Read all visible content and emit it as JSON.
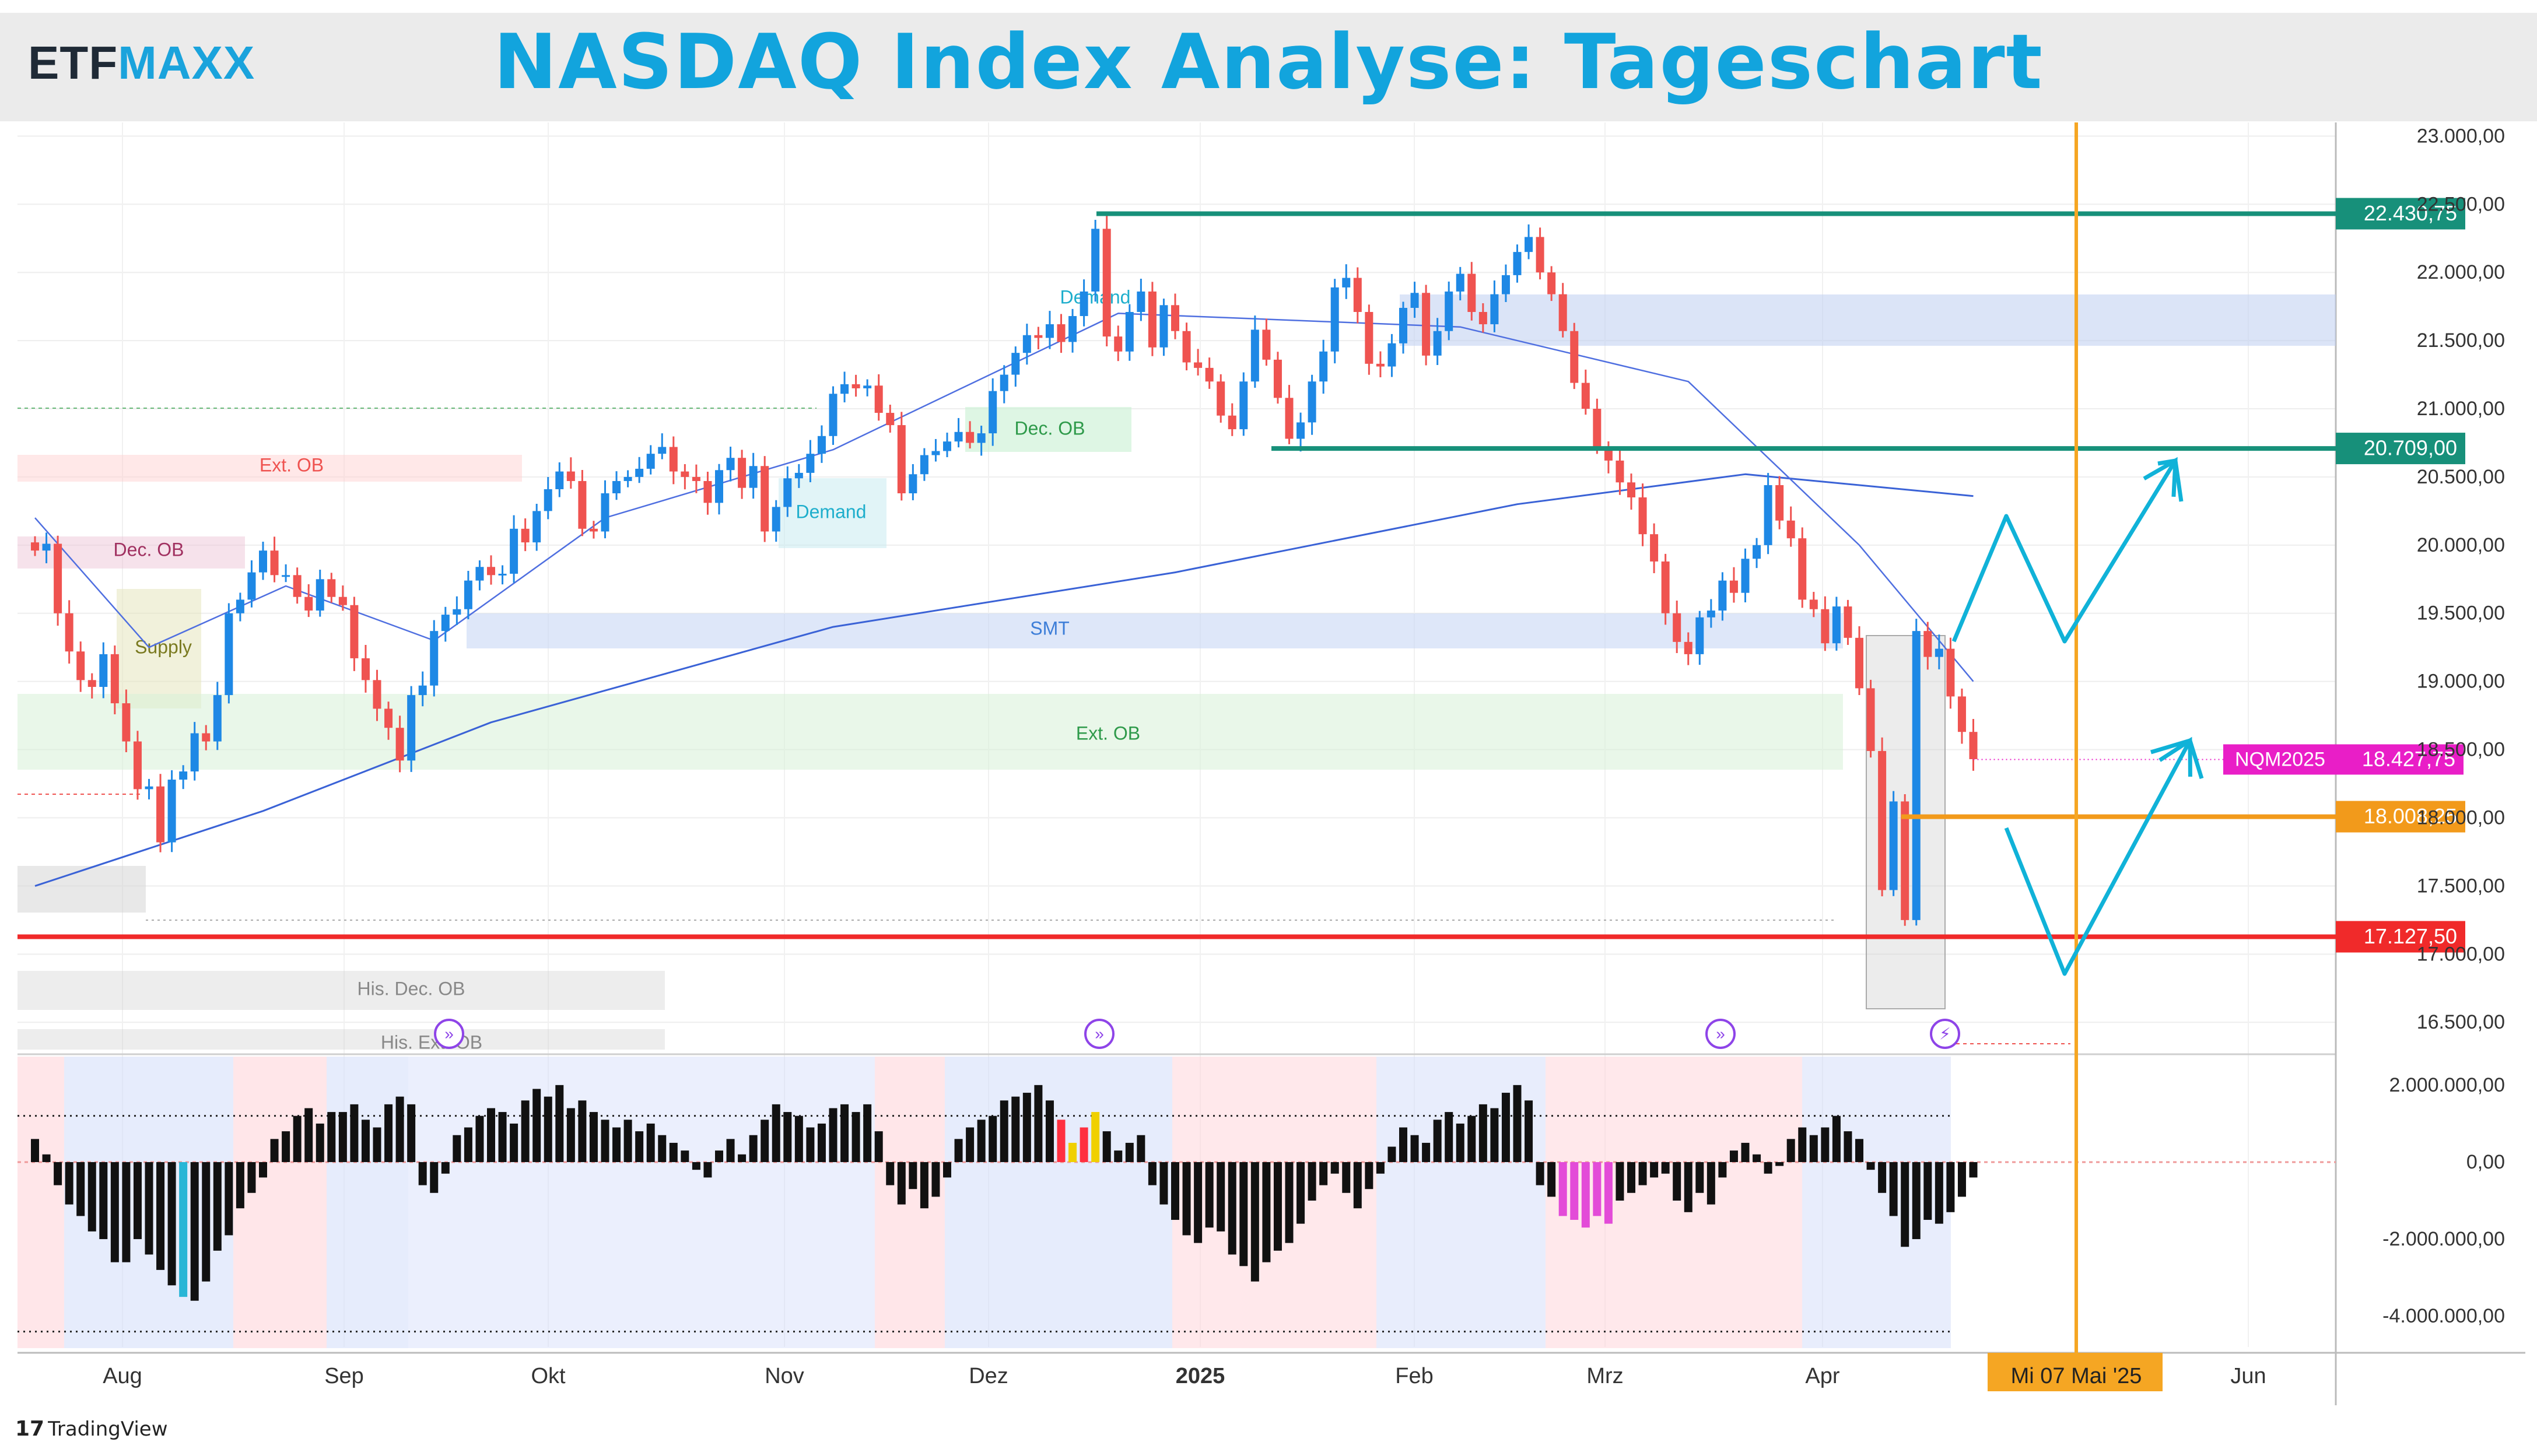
{
  "header": {
    "logo_part1": "ETF",
    "logo_part2": "MAXX",
    "title": "NASDAQ Index Analyse: Tageschart"
  },
  "footer": {
    "brand": "TradingView"
  },
  "colors": {
    "candle_up": "#1e88e5",
    "candle_down": "#ef5350",
    "level_green": "#17907a",
    "level_orange": "#f29a1b",
    "level_red": "#f02a2a",
    "date_marker": "#f5a623",
    "price_tag": "#e91ec7",
    "projection": "#10b2d8"
  },
  "chart_data": [
    {
      "type": "candlestick",
      "instrument": "NQM2025",
      "ylim": [
        16300,
        23100
      ],
      "y_ticks": [
        "16.500,00",
        "17.000,00",
        "17.500,00",
        "18.000,00",
        "18.500,00",
        "19.000,00",
        "19.500,00",
        "20.000,00",
        "20.500,00",
        "21.000,00",
        "21.500,00",
        "22.000,00",
        "22.500,00",
        "23.000,00"
      ],
      "x_labels": [
        "Aug",
        "Sep",
        "Okt",
        "Nov",
        "Dez",
        "2025",
        "Feb",
        "Mrz",
        "Apr",
        "Mi 07 Mai '25",
        "Jun"
      ],
      "closes": [
        19960,
        20010,
        19500,
        19220,
        19010,
        18960,
        19200,
        18840,
        18560,
        18210,
        18230,
        17820,
        18280,
        18340,
        18620,
        18560,
        18900,
        19500,
        19600,
        19800,
        19960,
        19780,
        19780,
        19620,
        19520,
        19750,
        19620,
        19560,
        19170,
        19010,
        18800,
        18660,
        18420,
        18900,
        18970,
        19370,
        19490,
        19530,
        19740,
        19840,
        19780,
        19790,
        20120,
        20020,
        20250,
        20410,
        20540,
        20470,
        20120,
        20100,
        20380,
        20470,
        20500,
        20560,
        20670,
        20720,
        20540,
        20500,
        20470,
        20310,
        20550,
        20640,
        20420,
        20580,
        20100,
        20280,
        20490,
        20530,
        20670,
        20800,
        21110,
        21180,
        21150,
        21170,
        20970,
        20880,
        20380,
        20520,
        20660,
        20690,
        20760,
        20830,
        20750,
        20820,
        21130,
        21250,
        21410,
        21540,
        21520,
        21620,
        21490,
        21680,
        21860,
        22320,
        21530,
        21420,
        21710,
        21860,
        21450,
        21760,
        21570,
        21340,
        21300,
        21200,
        20950,
        20850,
        21200,
        21580,
        21360,
        21080,
        20780,
        20900,
        21200,
        21420,
        21890,
        21960,
        21710,
        21330,
        21310,
        21480,
        21740,
        21850,
        21390,
        21570,
        21860,
        21990,
        21710,
        21620,
        21840,
        21980,
        22150,
        22260,
        22000,
        21840,
        21570,
        21190,
        21000,
        20710,
        20620,
        20460,
        20350,
        20080,
        19880,
        19500,
        19290,
        19200,
        19470,
        19520,
        19740,
        19650,
        19900,
        20000,
        20440,
        20180,
        20050,
        19600,
        19530,
        19280,
        19550,
        19320,
        18950,
        18490,
        17470,
        18120,
        17250,
        19370,
        19180,
        19240,
        18890,
        18630,
        18430
      ],
      "ema_fast_anchor": [
        [
          0,
          20200
        ],
        [
          10,
          19250
        ],
        [
          22,
          19700
        ],
        [
          35,
          19300
        ],
        [
          50,
          20200
        ],
        [
          70,
          20700
        ],
        [
          95,
          21700
        ],
        [
          125,
          21600
        ],
        [
          145,
          21200
        ],
        [
          160,
          20000
        ],
        [
          170,
          19000
        ]
      ],
      "sma_slow_anchor": [
        [
          0,
          17500
        ],
        [
          20,
          18050
        ],
        [
          40,
          18700
        ],
        [
          70,
          19400
        ],
        [
          100,
          19800
        ],
        [
          130,
          20300
        ],
        [
          150,
          20520
        ],
        [
          170,
          20360
        ]
      ],
      "levels": [
        {
          "label": "22.430,75",
          "value": 22430.75,
          "color": "#17907a"
        },
        {
          "label": "20.709,00",
          "value": 20709,
          "color": "#17907a"
        },
        {
          "label": "18.008,25",
          "value": 18008.25,
          "color": "#f29a1b"
        },
        {
          "label": "17.127,50",
          "value": 17127.5,
          "color": "#f02a2a"
        }
      ],
      "last_price": {
        "symbol": "NQM2025",
        "label": "18.427,75",
        "value": 18427.75
      },
      "date_marker_label": "Mi 07 Mai '25",
      "zones": [
        {
          "label": "Ext. OB",
          "kind": "supply",
          "text_color": "#ef5350"
        },
        {
          "label": "Dec. OB",
          "kind": "supply",
          "text_color": "#a03060"
        },
        {
          "label": "Supply",
          "kind": "supply",
          "text_color": "#7a7a20"
        },
        {
          "label": "Demand",
          "kind": "demand",
          "text_color": "#1eaecc"
        },
        {
          "label": "Demand",
          "kind": "demand",
          "text_color": "#1eaecc"
        },
        {
          "label": "Dec. OB",
          "kind": "demand",
          "text_color": "#2e9a4a"
        },
        {
          "label": "SMT",
          "kind": "smt",
          "text_color": "#3d7ed8"
        },
        {
          "label": "Ext. OB",
          "kind": "demand",
          "text_color": "#2e9a4a"
        },
        {
          "label": "His. Dec. OB",
          "kind": "history",
          "text_color": "#888888"
        },
        {
          "label": "His. Ext. OB",
          "kind": "history",
          "text_color": "#888888"
        }
      ]
    },
    {
      "type": "bar",
      "name": "oscillator",
      "ylim": [
        -4800000,
        2800000
      ],
      "y_ticks": [
        "2.000.000,00",
        "0,00",
        "-2.000.000,00",
        "-4.000.000,00"
      ],
      "values": [
        600000,
        200000,
        -600000,
        -1100000,
        -1400000,
        -1800000,
        -2000000,
        -2600000,
        -2600000,
        -2000000,
        -2400000,
        -2800000,
        -3200000,
        -3500000,
        -3600000,
        -3100000,
        -2300000,
        -1900000,
        -1200000,
        -800000,
        -400000,
        600000,
        800000,
        1200000,
        1400000,
        1000000,
        1300000,
        1300000,
        1500000,
        1100000,
        900000,
        1500000,
        1700000,
        1500000,
        -600000,
        -800000,
        -300000,
        700000,
        900000,
        1200000,
        1400000,
        1300000,
        1000000,
        1600000,
        1900000,
        1700000,
        2000000,
        1400000,
        1600000,
        1300000,
        1100000,
        900000,
        1100000,
        800000,
        1000000,
        700000,
        500000,
        300000,
        -200000,
        -400000,
        300000,
        600000,
        200000,
        700000,
        1100000,
        1500000,
        1300000,
        1200000,
        900000,
        1000000,
        1400000,
        1500000,
        1300000,
        1500000,
        800000,
        -600000,
        -1100000,
        -700000,
        -1200000,
        -900000,
        -400000,
        600000,
        900000,
        1100000,
        1200000,
        1600000,
        1700000,
        1800000,
        2000000,
        1600000,
        1100000,
        500000,
        900000,
        1300000,
        800000,
        300000,
        500000,
        700000,
        -600000,
        -1100000,
        -1500000,
        -1900000,
        -2100000,
        -1700000,
        -1800000,
        -2400000,
        -2700000,
        -3100000,
        -2600000,
        -2300000,
        -2100000,
        -1600000,
        -1000000,
        -600000,
        -300000,
        -800000,
        -1200000,
        -700000,
        -300000,
        400000,
        900000,
        700000,
        500000,
        1100000,
        1300000,
        1000000,
        1200000,
        1500000,
        1400000,
        1800000,
        2000000,
        1600000,
        -600000,
        -900000,
        -1400000,
        -1500000,
        -1700000,
        -1400000,
        -1600000,
        -1000000,
        -800000,
        -600000,
        -400000,
        -300000,
        -1000000,
        -1300000,
        -800000,
        -1100000,
        -400000,
        300000,
        500000,
        200000,
        -300000,
        -100000,
        600000,
        900000,
        700000,
        900000,
        1200000,
        800000,
        600000,
        -200000,
        -800000,
        -1400000,
        -2200000,
        -2000000,
        -1500000,
        -1600000,
        -1300000,
        -900000,
        -400000
      ],
      "reference_dotted": [
        1200000,
        0,
        -4400000
      ]
    }
  ]
}
